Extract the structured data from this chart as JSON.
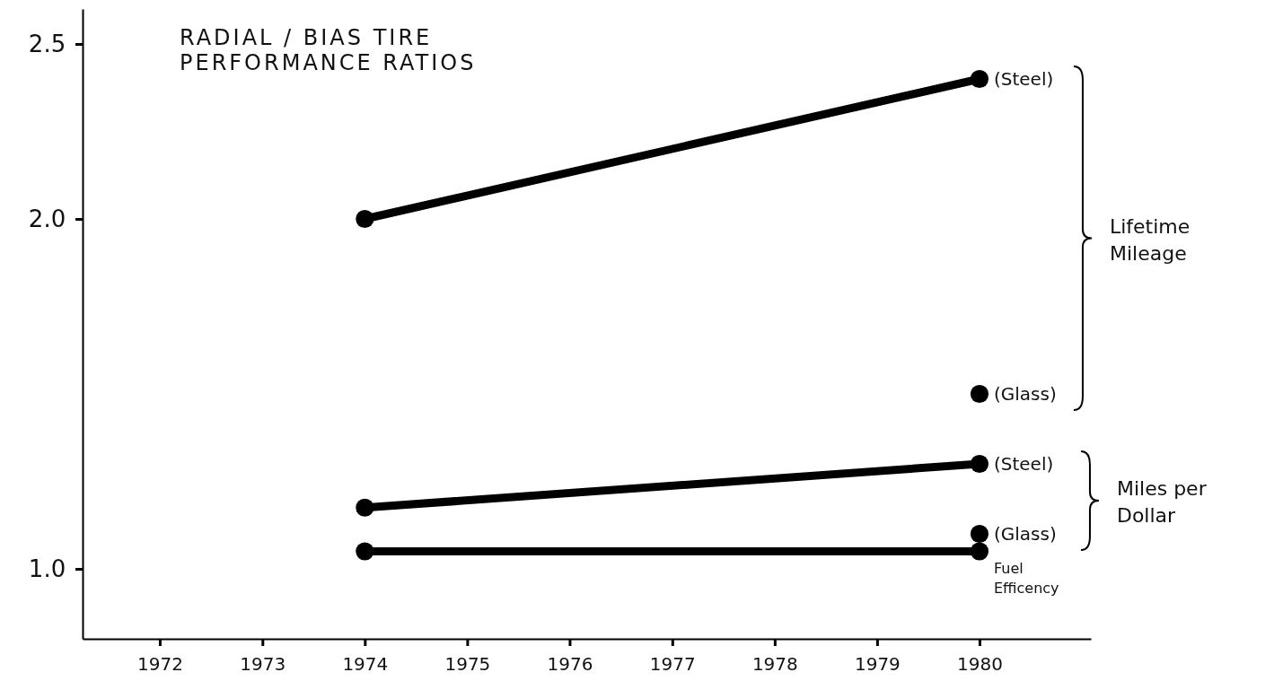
{
  "chart_data": {
    "type": "line",
    "title": "RADIAL / BIAS TIRE PERFORMANCE RATIOS",
    "xlim": [
      "1971-04",
      "1981-02"
    ],
    "xticks": [
      "1972",
      "1973",
      "1974",
      "1975",
      "1976",
      "1977",
      "1978",
      "1979",
      "1980"
    ],
    "ylim": [
      0.8,
      2.6
    ],
    "yticks": [
      {
        "value": 1,
        "label": "1.0"
      },
      {
        "value": 2,
        "label": "2.0"
      },
      {
        "value": 2.5,
        "label": "2.5"
      }
    ],
    "marker": "circle",
    "grid": false,
    "series": [
      {
        "color": "#000000",
        "x": [
          "1974",
          "1980"
        ],
        "values": [
          2.0,
          2.4
        ]
      },
      {
        "type": "scatter",
        "color": "#000000",
        "x": [
          "1980"
        ],
        "values": [
          1.5
        ]
      },
      {
        "color": "#000000",
        "x": [
          "1974",
          "1980"
        ],
        "values": [
          1.175,
          1.3
        ]
      },
      {
        "type": "scatter",
        "color": "#000000",
        "x": [
          "1980"
        ],
        "values": [
          1.1
        ]
      },
      {
        "color": "#000000",
        "x": [
          "1974",
          "1980"
        ],
        "values": [
          1.05,
          1.05
        ]
      }
    ],
    "annotations": [
      {
        "text": "(Steel)",
        "x": "1980",
        "y": 2.4
      },
      {
        "text": "(Glass)",
        "x": "1980",
        "y": 1.5
      },
      {
        "text": "(Steel)",
        "x": "1980",
        "y": 1.3
      },
      {
        "text": "(Glass)",
        "x": "1980",
        "y": 1.1
      },
      {
        "text": "Fuel Efficency",
        "x": "1980",
        "y": 1.05
      },
      "Lifetime Mileage",
      "Miles per Dollar"
    ]
  }
}
